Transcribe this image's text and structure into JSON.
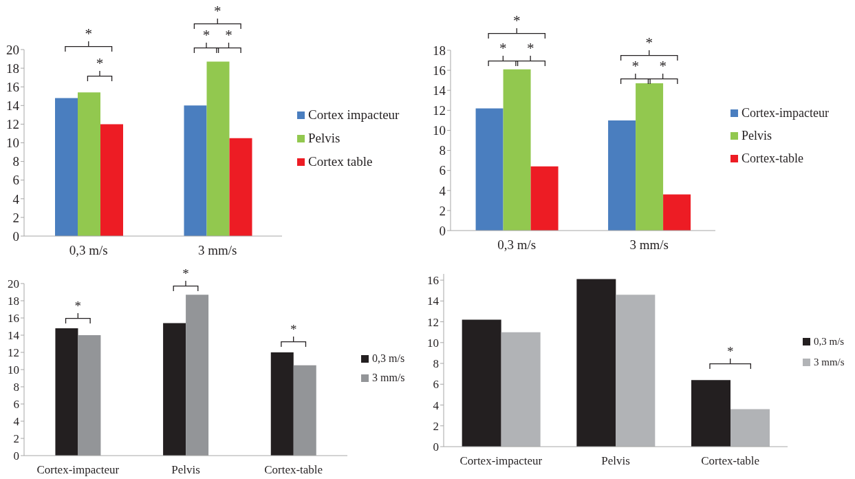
{
  "chart_data": [
    {
      "type": "bar",
      "categories": [
        "0,3 m/s",
        "3 mm/s"
      ],
      "series": [
        {
          "name": "Cortex impacteur",
          "color": "#4a7ebf",
          "values": [
            14.8,
            14.0
          ]
        },
        {
          "name": "Pelvis",
          "color": "#92c84f",
          "values": [
            15.4,
            18.7
          ]
        },
        {
          "name": "Cortex table",
          "color": "#ed1c24",
          "values": [
            12.0,
            10.5
          ]
        }
      ],
      "ylim": [
        0,
        20
      ],
      "yticks": [
        0,
        2,
        4,
        6,
        8,
        10,
        12,
        14,
        16,
        18,
        20
      ],
      "legend": "right",
      "annotations": [
        "*",
        "*",
        "*",
        "*",
        "*"
      ]
    },
    {
      "type": "bar",
      "categories": [
        "0,3 m/s",
        "3 mm/s"
      ],
      "series": [
        {
          "name": "Cortex-impacteur",
          "color": "#4a7ebf",
          "values": [
            12.2,
            11.0
          ]
        },
        {
          "name": "Pelvis",
          "color": "#92c84f",
          "values": [
            16.1,
            14.7
          ]
        },
        {
          "name": "Cortex-table",
          "color": "#ed1c24",
          "values": [
            6.4,
            3.6
          ]
        }
      ],
      "ylim": [
        0,
        18
      ],
      "yticks": [
        0,
        2,
        4,
        6,
        8,
        10,
        12,
        14,
        16,
        18
      ],
      "legend": "right",
      "annotations": [
        "*",
        "*",
        "*",
        "*",
        "*",
        "*"
      ]
    },
    {
      "type": "bar",
      "categories": [
        "Cortex-impacteur",
        "Pelvis",
        "Cortex-table"
      ],
      "series": [
        {
          "name": "0,3 m/s",
          "color": "#231f20",
          "values": [
            14.8,
            15.4,
            12.0
          ]
        },
        {
          "name": "3 mm/s",
          "color": "#939598",
          "values": [
            14.0,
            18.7,
            10.5
          ]
        }
      ],
      "ylim": [
        0,
        20
      ],
      "yticks": [
        0,
        2,
        4,
        6,
        8,
        10,
        12,
        14,
        16,
        18,
        20
      ],
      "legend": "right",
      "annotations": [
        "*",
        "*",
        "*"
      ]
    },
    {
      "type": "bar",
      "categories": [
        "Cortex-impacteur",
        "Pelvis",
        "Cortex-table"
      ],
      "series": [
        {
          "name": "0,3 m/s",
          "color": "#231f20",
          "values": [
            12.2,
            16.1,
            6.4
          ]
        },
        {
          "name": "3 mm/s",
          "color": "#b1b3b6",
          "values": [
            11.0,
            14.6,
            3.6
          ]
        }
      ],
      "ylim": [
        0,
        16.6
      ],
      "yticks": [
        0,
        2,
        4,
        6,
        8,
        10,
        12,
        14,
        16
      ],
      "legend": "right",
      "annotations": [
        "*"
      ]
    }
  ]
}
